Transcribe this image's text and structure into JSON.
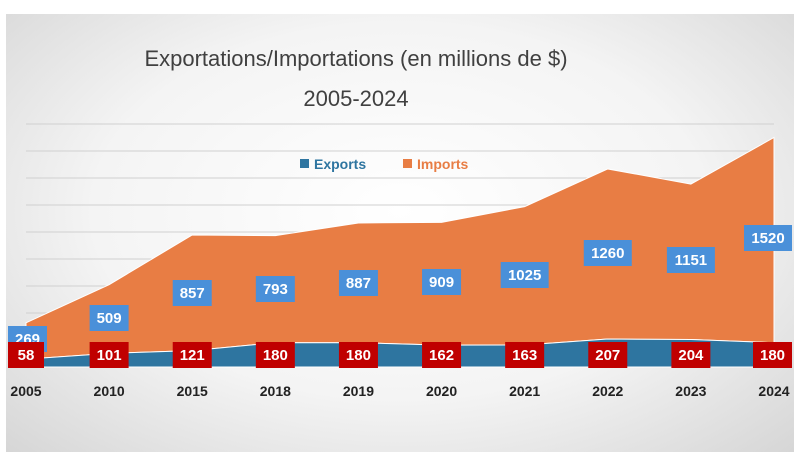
{
  "chart_data": {
    "type": "area",
    "title": "Exportations/Importations (en millions de $)",
    "subtitle": "2005-2024",
    "categories": [
      "2005",
      "2010",
      "2015",
      "2018",
      "2019",
      "2020",
      "2021",
      "2022",
      "2023",
      "2024"
    ],
    "series": [
      {
        "name": "Exports",
        "values": [
          58,
          101,
          121,
          180,
          180,
          162,
          163,
          207,
          204,
          180
        ],
        "color": "#2e75a0",
        "label_color": "#c00000"
      },
      {
        "name": "Imports",
        "values": [
          269,
          509,
          857,
          793,
          887,
          909,
          1025,
          1260,
          1151,
          1520
        ],
        "color": "#e87d44",
        "label_color": "#4a90d9"
      }
    ],
    "stacked": true,
    "ylim": [
      0,
      1800
    ],
    "grid": true,
    "legend": "top-center"
  }
}
